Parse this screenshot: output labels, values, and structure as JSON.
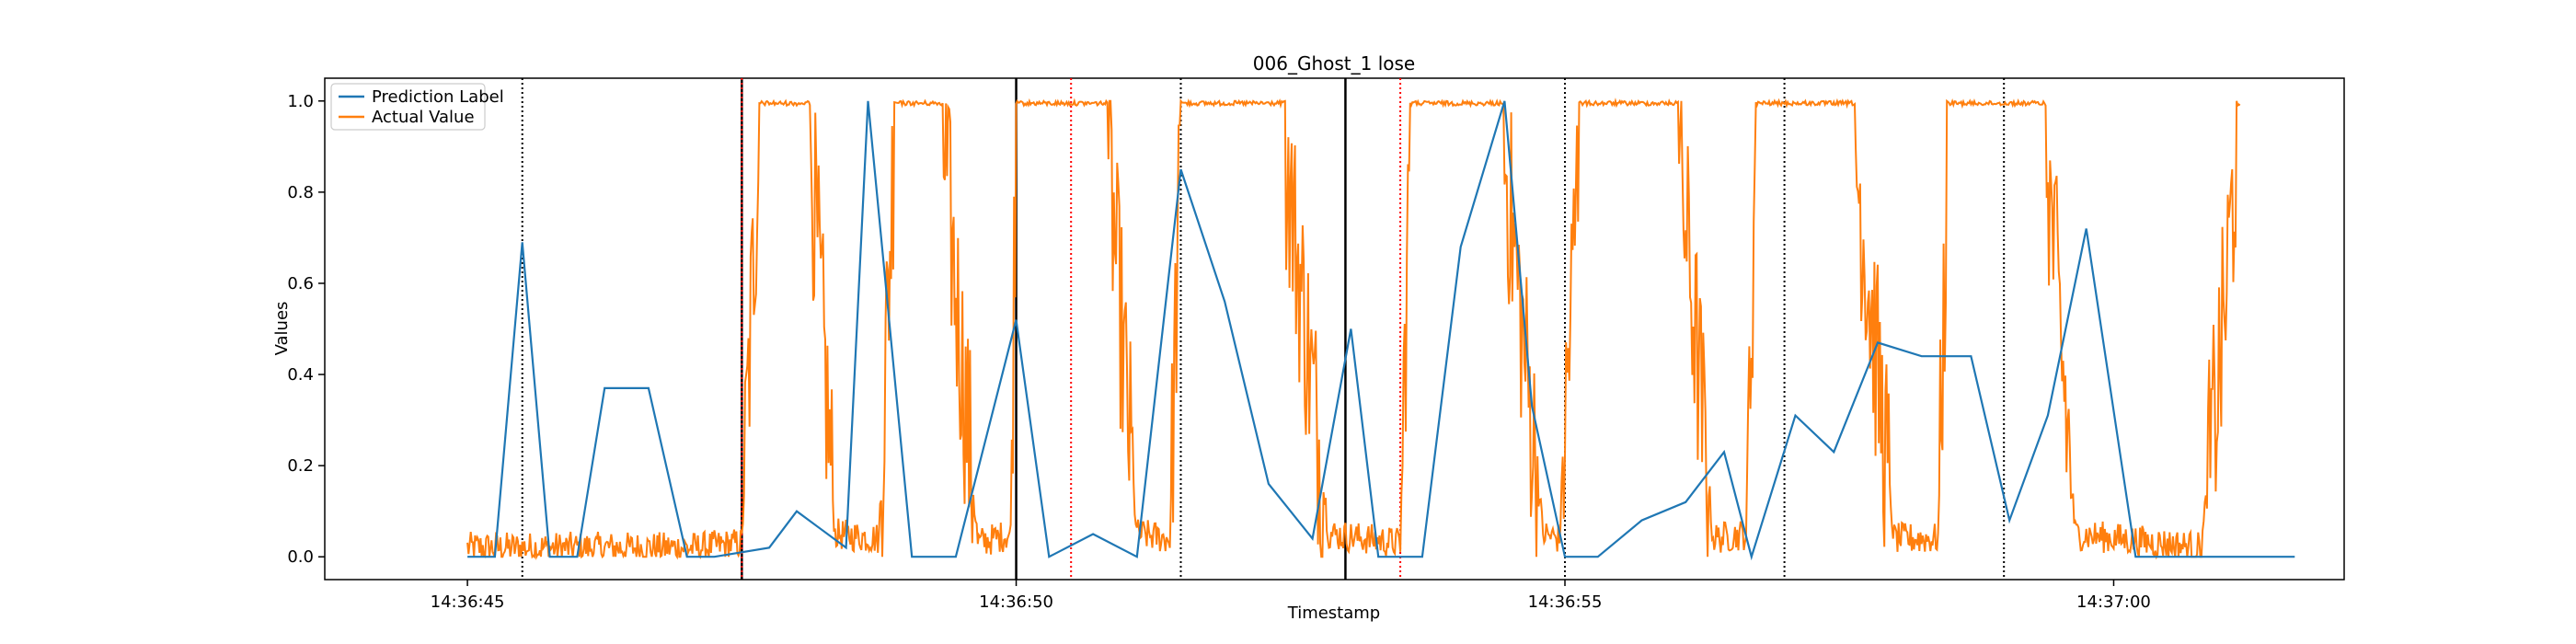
{
  "chart_data": {
    "type": "line",
    "title": "006_Ghost_1 lose",
    "xlabel": "Timestamp",
    "ylabel": "Values",
    "xlim": [
      -2.6,
      34.2
    ],
    "ylim": [
      -0.05,
      1.05
    ],
    "x_ticks": [
      {
        "x": 0,
        "label": "14:36:45"
      },
      {
        "x": 10,
        "label": "14:36:50"
      },
      {
        "x": 20,
        "label": "14:36:55"
      },
      {
        "x": 30,
        "label": "14:37:00"
      }
    ],
    "y_ticks": [
      {
        "y": 0.0,
        "label": "0.0"
      },
      {
        "y": 0.2,
        "label": "0.2"
      },
      {
        "y": 0.4,
        "label": "0.4"
      },
      {
        "y": 0.6,
        "label": "0.6"
      },
      {
        "y": 0.8,
        "label": "0.8"
      },
      {
        "y": 1.0,
        "label": "1.0"
      }
    ],
    "legend": {
      "position": "top-left",
      "entries": [
        "Prediction Label",
        "Actual Value"
      ]
    },
    "grid": false,
    "colors": {
      "prediction": "#1f77b4",
      "actual": "#ff7f0e"
    },
    "series": [
      {
        "name": "Prediction Label",
        "x": [
          0,
          0.5,
          1.0,
          1.5,
          2.0,
          2.5,
          3.3,
          4.0,
          4.5,
          5.5,
          6.0,
          6.9,
          7.3,
          8.1,
          8.9,
          10.0,
          10.6,
          11.4,
          12.2,
          13.0,
          13.8,
          14.6,
          15.4,
          16.1,
          16.6,
          17.4,
          18.1,
          18.9,
          19.4,
          20.0,
          20.6,
          21.4,
          22.2,
          22.9,
          23.4,
          24.2,
          24.9,
          25.7,
          26.5,
          27.4,
          28.1,
          28.8,
          29.5,
          30.4,
          31.0,
          31.7,
          32.2,
          32.9,
          33.3
        ],
        "y": [
          0.0,
          0.0,
          0.69,
          0.0,
          0.0,
          0.37,
          0.37,
          0.0,
          0.0,
          0.02,
          0.1,
          0.02,
          1.0,
          0.0,
          0.0,
          0.52,
          0.0,
          0.05,
          0.0,
          0.85,
          0.56,
          0.16,
          0.04,
          0.5,
          0.0,
          0.0,
          0.68,
          1.0,
          0.33,
          0.0,
          0.0,
          0.08,
          0.12,
          0.23,
          0.0,
          0.31,
          0.23,
          0.47,
          0.44,
          0.44,
          0.08,
          0.31,
          0.72,
          0.0,
          0.0,
          0.0,
          0.0,
          0.0,
          0.0
        ]
      },
      {
        "name": "Actual Value",
        "x_range": [
          0,
          32.3
        ],
        "segments": [
          {
            "x": 0.0,
            "y": 0.02
          },
          {
            "x": 4.2,
            "y": 0.02
          },
          {
            "x": 5.0,
            "y": 0.03
          },
          {
            "x": 5.3,
            "y": 0.9
          },
          {
            "x": 5.5,
            "y": 1.0
          },
          {
            "x": 6.2,
            "y": 1.0
          },
          {
            "x": 6.7,
            "y": 0.05
          },
          {
            "x": 7.5,
            "y": 0.04
          },
          {
            "x": 7.8,
            "y": 1.0
          },
          {
            "x": 8.6,
            "y": 1.0
          },
          {
            "x": 9.3,
            "y": 0.03
          },
          {
            "x": 9.9,
            "y": 0.05
          },
          {
            "x": 10.0,
            "y": 1.0
          },
          {
            "x": 11.6,
            "y": 1.0
          },
          {
            "x": 12.2,
            "y": 0.05
          },
          {
            "x": 12.8,
            "y": 0.04
          },
          {
            "x": 13.0,
            "y": 0.9
          },
          {
            "x": 13.3,
            "y": 1.0
          },
          {
            "x": 14.8,
            "y": 1.0
          },
          {
            "x": 15.7,
            "y": 0.05
          },
          {
            "x": 17.0,
            "y": 0.03
          },
          {
            "x": 17.2,
            "y": 1.0
          },
          {
            "x": 18.8,
            "y": 1.0
          },
          {
            "x": 19.6,
            "y": 0.05
          },
          {
            "x": 19.9,
            "y": 0.04
          },
          {
            "x": 20.3,
            "y": 1.0
          },
          {
            "x": 22.0,
            "y": 1.0
          },
          {
            "x": 22.7,
            "y": 0.04
          },
          {
            "x": 23.3,
            "y": 0.05
          },
          {
            "x": 23.5,
            "y": 1.0
          },
          {
            "x": 25.2,
            "y": 1.0
          },
          {
            "x": 26.0,
            "y": 0.04
          },
          {
            "x": 26.8,
            "y": 0.04
          },
          {
            "x": 27.0,
            "y": 1.0
          },
          {
            "x": 28.7,
            "y": 1.0
          },
          {
            "x": 29.3,
            "y": 0.05
          },
          {
            "x": 31.6,
            "y": 0.02
          },
          {
            "x": 32.0,
            "y": 0.5
          },
          {
            "x": 32.3,
            "y": 1.0
          }
        ]
      }
    ],
    "vlines": [
      {
        "x": 1.0,
        "style": "dotted",
        "color": "#000000"
      },
      {
        "x": 5.0,
        "style": "solid",
        "color": "#000000"
      },
      {
        "x": 5.0,
        "style": "dotted",
        "color": "#ff0000"
      },
      {
        "x": 10.0,
        "style": "solid",
        "color": "#000000"
      },
      {
        "x": 11.0,
        "style": "dotted",
        "color": "#ff0000"
      },
      {
        "x": 13.0,
        "style": "dotted",
        "color": "#000000"
      },
      {
        "x": 16.0,
        "style": "solid",
        "color": "#000000"
      },
      {
        "x": 17.0,
        "style": "dotted",
        "color": "#ff0000"
      },
      {
        "x": 20.0,
        "style": "dotted",
        "color": "#000000"
      },
      {
        "x": 24.0,
        "style": "dotted",
        "color": "#000000"
      },
      {
        "x": 28.0,
        "style": "dotted",
        "color": "#000000"
      }
    ]
  }
}
